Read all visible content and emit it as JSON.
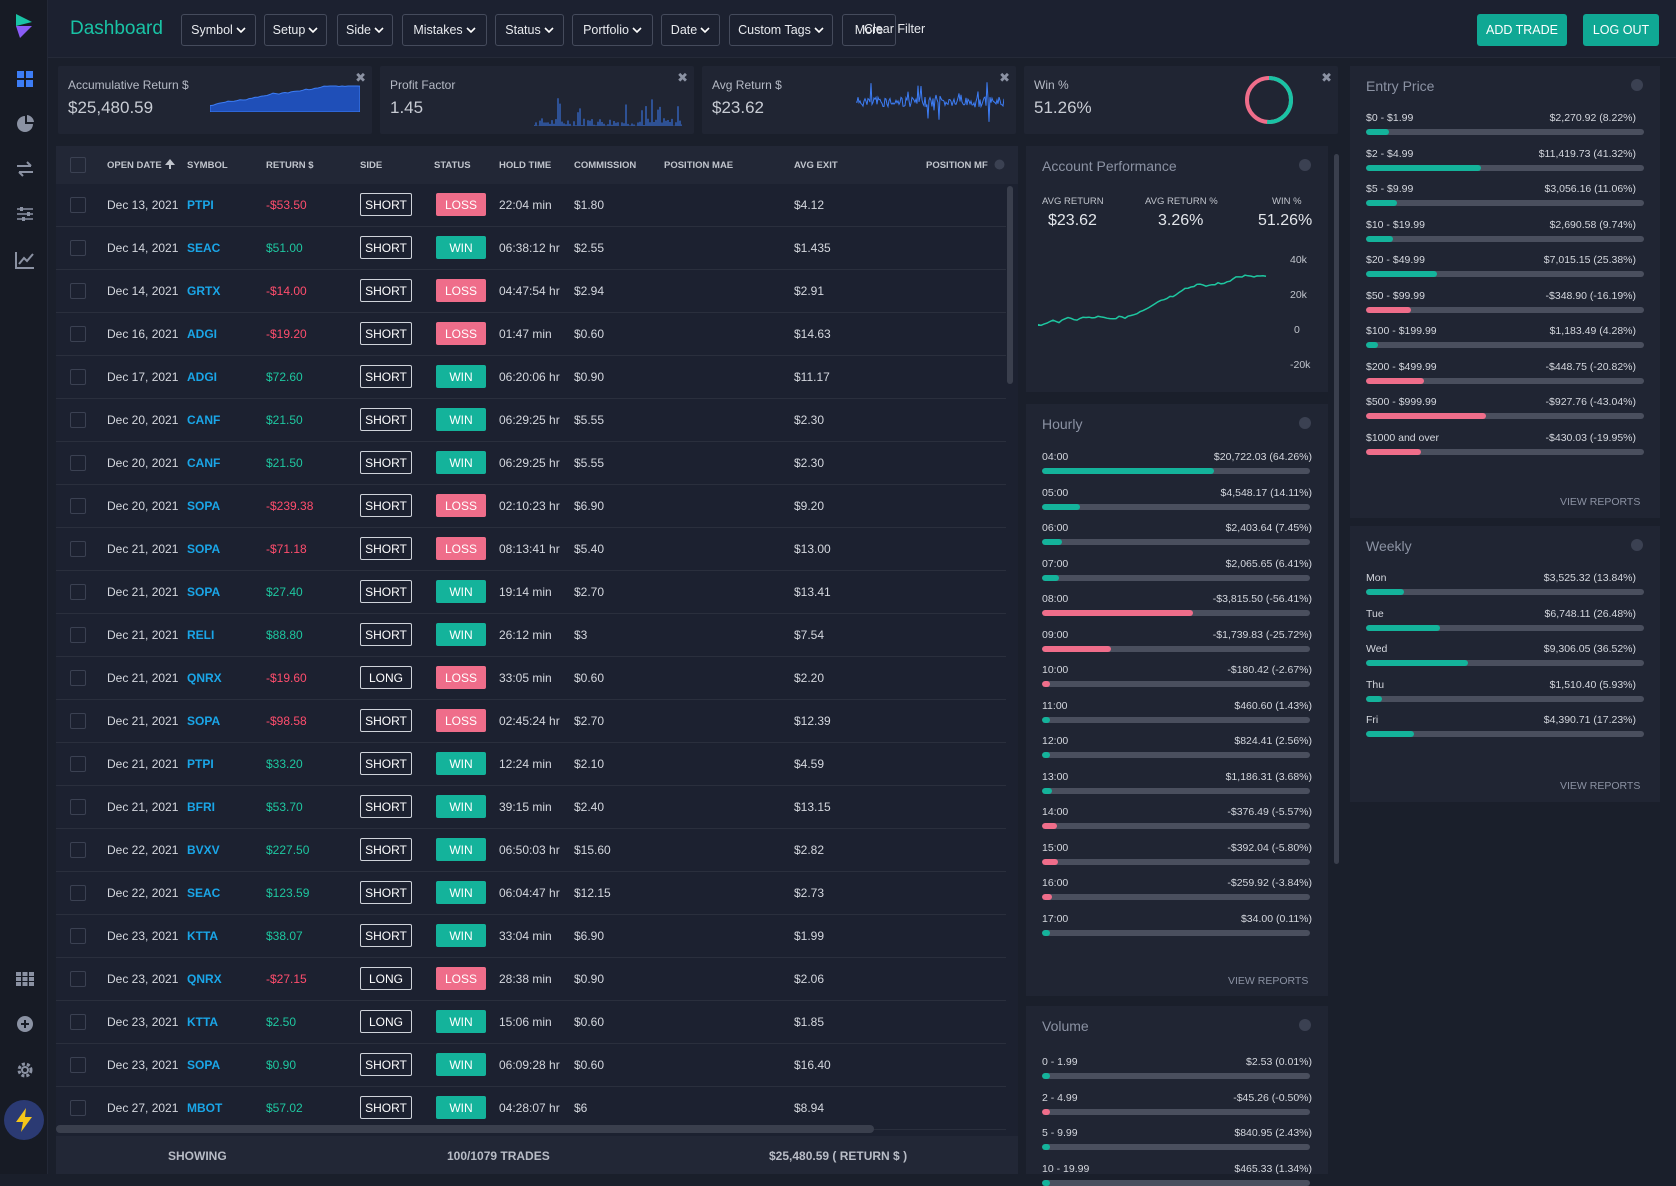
{
  "topbar": {
    "title": "Dashboard",
    "filters": [
      "Symbol",
      "Setup",
      "Side",
      "Mistakes",
      "Status",
      "Portfolio",
      "Date",
      "Custom Tags"
    ],
    "more": "More",
    "clear": "Clear Filter",
    "add_trade": "ADD TRADE",
    "logout": "LOG OUT"
  },
  "sidebar": {
    "icons": [
      "dashboard-icon",
      "pie-chart-icon",
      "transfer-icon",
      "sliders-icon",
      "trend-chart-icon"
    ],
    "bottom_icons": [
      "apps-grid-icon",
      "add-circle-icon",
      "gear-icon",
      "bolt-icon"
    ]
  },
  "stats": [
    {
      "label": "Accumulative Return $",
      "value": "$25,480.59"
    },
    {
      "label": "Profit Factor",
      "value": "1.45"
    },
    {
      "label": "Avg Return $",
      "value": "$23.62"
    },
    {
      "label": "Win %",
      "value": "51.26%"
    }
  ],
  "table": {
    "headers": [
      "OPEN DATE",
      "SYMBOL",
      "RETURN $",
      "SIDE",
      "STATUS",
      "HOLD TIME",
      "COMMISSION",
      "POSITION MAE",
      "AVG EXIT",
      "POSITION MF"
    ],
    "rows": [
      [
        "Dec 13, 2021",
        "PTPI",
        "-$53.50",
        "SHORT",
        "LOSS",
        "22:04 min",
        "$1.80",
        "$4.12"
      ],
      [
        "Dec 14, 2021",
        "SEAC",
        "$51.00",
        "SHORT",
        "WIN",
        "06:38:12 hr",
        "$2.55",
        "$1.435"
      ],
      [
        "Dec 14, 2021",
        "GRTX",
        "-$14.00",
        "SHORT",
        "LOSS",
        "04:47:54 hr",
        "$2.94",
        "$2.91"
      ],
      [
        "Dec 16, 2021",
        "ADGI",
        "-$19.20",
        "SHORT",
        "LOSS",
        "01:47 min",
        "$0.60",
        "$14.63"
      ],
      [
        "Dec 17, 2021",
        "ADGI",
        "$72.60",
        "SHORT",
        "WIN",
        "06:20:06 hr",
        "$0.90",
        "$11.17"
      ],
      [
        "Dec 20, 2021",
        "CANF",
        "$21.50",
        "SHORT",
        "WIN",
        "06:29:25 hr",
        "$5.55",
        "$2.30"
      ],
      [
        "Dec 20, 2021",
        "CANF",
        "$21.50",
        "SHORT",
        "WIN",
        "06:29:25 hr",
        "$5.55",
        "$2.30"
      ],
      [
        "Dec 20, 2021",
        "SOPA",
        "-$239.38",
        "SHORT",
        "LOSS",
        "02:10:23 hr",
        "$6.90",
        "$9.20"
      ],
      [
        "Dec 21, 2021",
        "SOPA",
        "-$71.18",
        "SHORT",
        "LOSS",
        "08:13:41 hr",
        "$5.40",
        "$13.00"
      ],
      [
        "Dec 21, 2021",
        "SOPA",
        "$27.40",
        "SHORT",
        "WIN",
        "19:14 min",
        "$2.70",
        "$13.41"
      ],
      [
        "Dec 21, 2021",
        "RELI",
        "$88.80",
        "SHORT",
        "WIN",
        "26:12 min",
        "$3",
        "$7.54"
      ],
      [
        "Dec 21, 2021",
        "QNRX",
        "-$19.60",
        "LONG",
        "LOSS",
        "33:05 min",
        "$0.60",
        "$2.20"
      ],
      [
        "Dec 21, 2021",
        "SOPA",
        "-$98.58",
        "SHORT",
        "LOSS",
        "02:45:24 hr",
        "$2.70",
        "$12.39"
      ],
      [
        "Dec 21, 2021",
        "PTPI",
        "$33.20",
        "SHORT",
        "WIN",
        "12:24 min",
        "$2.10",
        "$4.59"
      ],
      [
        "Dec 21, 2021",
        "BFRI",
        "$53.70",
        "SHORT",
        "WIN",
        "39:15 min",
        "$2.40",
        "$13.15"
      ],
      [
        "Dec 22, 2021",
        "BVXV",
        "$227.50",
        "SHORT",
        "WIN",
        "06:50:03 hr",
        "$15.60",
        "$2.82"
      ],
      [
        "Dec 22, 2021",
        "SEAC",
        "$123.59",
        "SHORT",
        "WIN",
        "06:04:47 hr",
        "$12.15",
        "$2.73"
      ],
      [
        "Dec 23, 2021",
        "KTTA",
        "$38.07",
        "SHORT",
        "WIN",
        "33:04 min",
        "$6.90",
        "$1.99"
      ],
      [
        "Dec 23, 2021",
        "QNRX",
        "-$27.15",
        "LONG",
        "LOSS",
        "28:38 min",
        "$0.90",
        "$2.06"
      ],
      [
        "Dec 23, 2021",
        "KTTA",
        "$2.50",
        "LONG",
        "WIN",
        "15:06 min",
        "$0.60",
        "$1.85"
      ],
      [
        "Dec 23, 2021",
        "SOPA",
        "$0.90",
        "SHORT",
        "WIN",
        "06:09:28 hr",
        "$0.60",
        "$16.40"
      ],
      [
        "Dec 27, 2021",
        "MBOT",
        "$57.02",
        "SHORT",
        "WIN",
        "04:28:07 hr",
        "$6",
        "$8.94"
      ]
    ],
    "footer": {
      "showing": "SHOWING",
      "count": "100/1079 TRADES",
      "total": "$25,480.59 ( RETURN $ )"
    }
  },
  "account": {
    "title": "Account Performance",
    "metrics": [
      {
        "label": "AVG RETURN",
        "value": "$23.62"
      },
      {
        "label": "AVG RETURN %",
        "value": "3.26%"
      },
      {
        "label": "WIN %",
        "value": "51.26%"
      }
    ],
    "yticks": [
      "40k",
      "20k",
      "0",
      "-20k"
    ]
  },
  "hourly": {
    "title": "Hourly",
    "view": "VIEW REPORTS",
    "rows": [
      {
        "label": "04:00",
        "value": "$20,722.03 (64.26%)",
        "pct": 64.26,
        "pos": true
      },
      {
        "label": "05:00",
        "value": "$4,548.17 (14.11%)",
        "pct": 14.11,
        "pos": true
      },
      {
        "label": "06:00",
        "value": "$2,403.64 (7.45%)",
        "pct": 7.45,
        "pos": true
      },
      {
        "label": "07:00",
        "value": "$2,065.65 (6.41%)",
        "pct": 6.41,
        "pos": true
      },
      {
        "label": "08:00",
        "value": "-$3,815.50 (-56.41%)",
        "pct": 56.41,
        "pos": false
      },
      {
        "label": "09:00",
        "value": "-$1,739.83 (-25.72%)",
        "pct": 25.72,
        "pos": false
      },
      {
        "label": "10:00",
        "value": "-$180.42 (-2.67%)",
        "pct": 2.67,
        "pos": false
      },
      {
        "label": "11:00",
        "value": "$460.60 (1.43%)",
        "pct": 1.43,
        "pos": true
      },
      {
        "label": "12:00",
        "value": "$824.41 (2.56%)",
        "pct": 2.56,
        "pos": true
      },
      {
        "label": "13:00",
        "value": "$1,186.31 (3.68%)",
        "pct": 3.68,
        "pos": true
      },
      {
        "label": "14:00",
        "value": "-$376.49 (-5.57%)",
        "pct": 5.57,
        "pos": false
      },
      {
        "label": "15:00",
        "value": "-$392.04 (-5.80%)",
        "pct": 5.8,
        "pos": false
      },
      {
        "label": "16:00",
        "value": "-$259.92 (-3.84%)",
        "pct": 3.84,
        "pos": false
      },
      {
        "label": "17:00",
        "value": "$34.00 (0.11%)",
        "pct": 0.11,
        "pos": true
      }
    ]
  },
  "volume": {
    "title": "Volume",
    "rows": [
      {
        "label": "0 - 1.99",
        "value": "$2.53 (0.01%)",
        "pct": 0.01,
        "pos": true
      },
      {
        "label": "2 - 4.99",
        "value": "-$45.26 (-0.50%)",
        "pct": 0.5,
        "pos": false
      },
      {
        "label": "5 - 9.99",
        "value": "$840.95 (2.43%)",
        "pct": 2.43,
        "pos": true
      },
      {
        "label": "10 - 19.99",
        "value": "$465.33 (1.34%)",
        "pct": 1.34,
        "pos": true
      }
    ]
  },
  "entry": {
    "title": "Entry Price",
    "view": "VIEW REPORTS",
    "rows": [
      {
        "label": "$0 - $1.99",
        "value": "$2,270.92 (8.22%)",
        "pct": 8.22,
        "pos": true
      },
      {
        "label": "$2 - $4.99",
        "value": "$11,419.73 (41.32%)",
        "pct": 41.32,
        "pos": true
      },
      {
        "label": "$5 - $9.99",
        "value": "$3,056.16 (11.06%)",
        "pct": 11.06,
        "pos": true
      },
      {
        "label": "$10 - $19.99",
        "value": "$2,690.58 (9.74%)",
        "pct": 9.74,
        "pos": true
      },
      {
        "label": "$20 - $49.99",
        "value": "$7,015.15 (25.38%)",
        "pct": 25.38,
        "pos": true
      },
      {
        "label": "$50 - $99.99",
        "value": "-$348.90 (-16.19%)",
        "pct": 16.19,
        "pos": false
      },
      {
        "label": "$100 - $199.99",
        "value": "$1,183.49 (4.28%)",
        "pct": 4.28,
        "pos": true
      },
      {
        "label": "$200 - $499.99",
        "value": "-$448.75 (-20.82%)",
        "pct": 20.82,
        "pos": false
      },
      {
        "label": "$500 - $999.99",
        "value": "-$927.76 (-43.04%)",
        "pct": 43.04,
        "pos": false
      },
      {
        "label": "$1000 and over",
        "value": "-$430.03 (-19.95%)",
        "pct": 19.95,
        "pos": false
      }
    ]
  },
  "weekly": {
    "title": "Weekly",
    "view": "VIEW REPORTS",
    "rows": [
      {
        "label": "Mon",
        "value": "$3,525.32 (13.84%)",
        "pct": 13.84,
        "pos": true
      },
      {
        "label": "Tue",
        "value": "$6,748.11 (26.48%)",
        "pct": 26.48,
        "pos": true
      },
      {
        "label": "Wed",
        "value": "$9,306.05 (36.52%)",
        "pct": 36.52,
        "pos": true
      },
      {
        "label": "Thu",
        "value": "$1,510.40 (5.93%)",
        "pct": 5.93,
        "pos": true
      },
      {
        "label": "Fri",
        "value": "$4,390.71 (17.23%)",
        "pct": 17.23,
        "pos": true
      }
    ]
  },
  "colors": {
    "accent": "#19c3a5",
    "win": "#14b39b",
    "loss": "#ef6d8a",
    "symbol": "#1aa6e8",
    "spark": "#2f6df0"
  }
}
